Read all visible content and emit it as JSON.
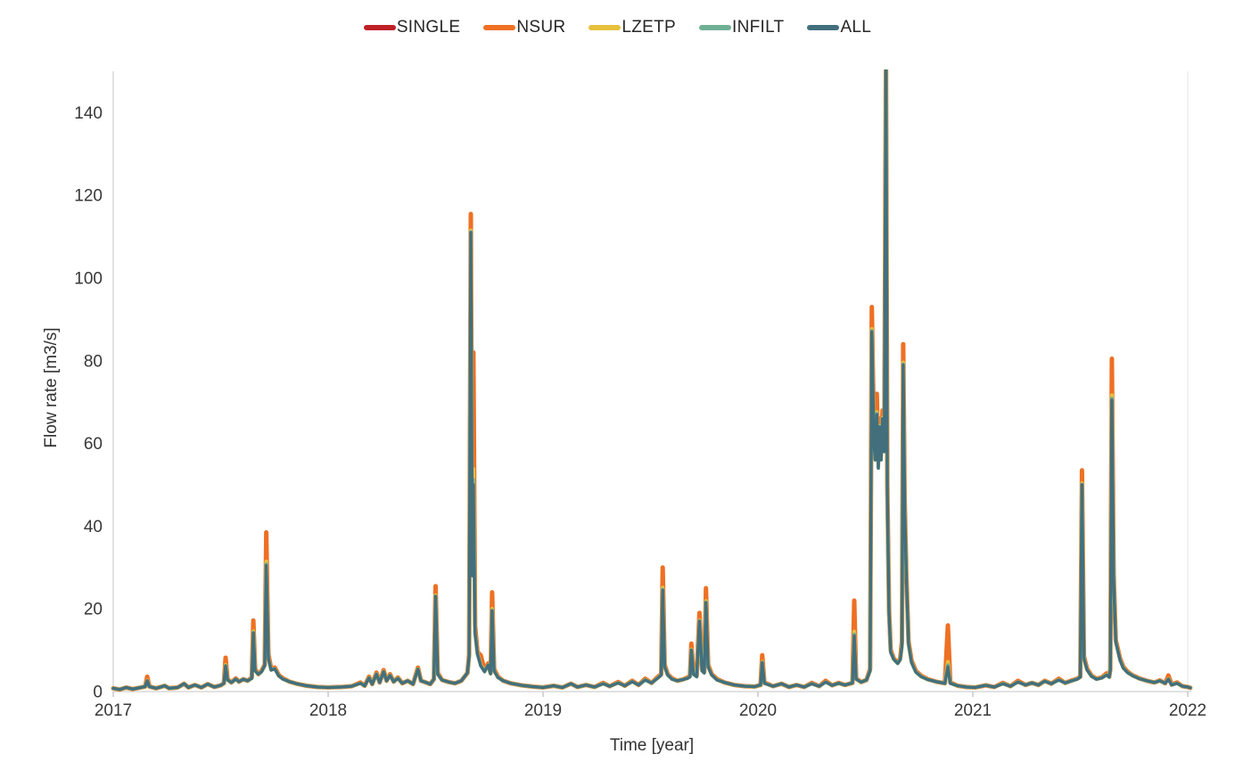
{
  "figure": {
    "background": "#ffffff"
  },
  "chart_data": {
    "type": "line",
    "title": "",
    "xlabel": "Time [year]",
    "ylabel": "Flow rate [m3/s]",
    "xlim": [
      2017,
      2022.02
    ],
    "ylim": [
      0,
      150
    ],
    "x_ticks": [
      "2017",
      "2018",
      "2019",
      "2020",
      "2021",
      "2022"
    ],
    "x_tick_values": [
      2017,
      2018,
      2019,
      2020,
      2021,
      2022
    ],
    "y_ticks": [
      0,
      20,
      40,
      60,
      80,
      100,
      120,
      140
    ],
    "grid": false,
    "legend_position": "top-center",
    "axis_color": "#d9d9d9",
    "text_color": "#383838",
    "note": "Daily flow-rate sensitivity comparison 2017-2022. SINGLE, LZETP and INFILT overlap ALL almost everywhere; only NSUR (orange) rises above ALL (teal) at flood peaks. The peak near 2020.6 exceeds the axis maximum and is clipped at 150.",
    "x": [
      2017.0,
      2017.03,
      2017.06,
      2017.09,
      2017.12,
      2017.148,
      2017.158,
      2017.168,
      2017.2,
      2017.24,
      2017.26,
      2017.3,
      2017.33,
      2017.35,
      2017.38,
      2017.41,
      2017.44,
      2017.47,
      2017.5,
      2017.515,
      2017.523,
      2017.532,
      2017.55,
      2017.57,
      2017.585,
      2017.605,
      2017.625,
      2017.645,
      2017.652,
      2017.66,
      2017.675,
      2017.69,
      2017.705,
      2017.712,
      2017.722,
      2017.735,
      2017.752,
      2017.77,
      2017.79,
      2017.82,
      2017.86,
      2017.9,
      2017.95,
      2018.0,
      2018.06,
      2018.11,
      2018.15,
      2018.17,
      2018.19,
      2018.205,
      2018.225,
      2018.24,
      2018.258,
      2018.272,
      2018.288,
      2018.305,
      2018.325,
      2018.345,
      2018.37,
      2018.395,
      2018.418,
      2018.432,
      2018.455,
      2018.475,
      2018.492,
      2018.5,
      2018.51,
      2018.53,
      2018.56,
      2018.59,
      2018.62,
      2018.648,
      2018.656,
      2018.664,
      2018.671,
      2018.676,
      2018.684,
      2018.695,
      2018.71,
      2018.728,
      2018.745,
      2018.756,
      2018.763,
      2018.772,
      2018.79,
      2018.815,
      2018.85,
      2018.9,
      2018.95,
      2019.0,
      2019.05,
      2019.09,
      2019.13,
      2019.16,
      2019.2,
      2019.24,
      2019.28,
      2019.31,
      2019.35,
      2019.38,
      2019.415,
      2019.445,
      2019.475,
      2019.505,
      2019.535,
      2019.55,
      2019.557,
      2019.566,
      2019.58,
      2019.6,
      2019.625,
      2019.65,
      2019.672,
      2019.684,
      2019.69,
      2019.7,
      2019.715,
      2019.728,
      2019.74,
      2019.75,
      2019.758,
      2019.768,
      2019.785,
      2019.81,
      2019.845,
      2019.89,
      2019.94,
      2019.985,
      2020.012,
      2020.02,
      2020.03,
      2020.07,
      2020.11,
      2020.145,
      2020.18,
      2020.215,
      2020.25,
      2020.285,
      2020.315,
      2020.345,
      2020.375,
      2020.405,
      2020.44,
      2020.448,
      2020.457,
      2020.48,
      2020.505,
      2020.522,
      2020.53,
      2020.54,
      2020.546,
      2020.553,
      2020.56,
      2020.566,
      2020.573,
      2020.58,
      2020.588,
      2020.596,
      2020.602,
      2020.61,
      2020.618,
      2020.632,
      2020.65,
      2020.662,
      2020.67,
      2020.676,
      2020.683,
      2020.691,
      2020.701,
      2020.715,
      2020.735,
      2020.76,
      2020.79,
      2020.83,
      2020.87,
      2020.884,
      2020.895,
      2020.93,
      2020.97,
      2021.01,
      2021.06,
      2021.1,
      2021.14,
      2021.175,
      2021.21,
      2021.245,
      2021.275,
      2021.305,
      2021.335,
      2021.365,
      2021.4,
      2021.43,
      2021.46,
      2021.485,
      2021.5,
      2021.508,
      2021.517,
      2021.532,
      2021.552,
      2021.575,
      2021.6,
      2021.622,
      2021.635,
      2021.64,
      2021.647,
      2021.655,
      2021.665,
      2021.685,
      2021.7,
      2021.72,
      2021.745,
      2021.775,
      2021.81,
      2021.845,
      2021.87,
      2021.895,
      2021.91,
      2021.925,
      2021.95,
      2021.975,
      2022.0,
      2022.012
    ],
    "series": [
      {
        "name": "SINGLE",
        "color": "#bf2026",
        "values_from": "ALL"
      },
      {
        "name": "NSUR",
        "color": "#ee7023",
        "values": [
          0.8,
          0.5,
          1.0,
          0.6,
          0.9,
          1.2,
          3.6,
          1.2,
          0.8,
          1.4,
          0.8,
          1.0,
          1.9,
          1.0,
          1.6,
          1.0,
          1.8,
          1.1,
          1.5,
          2.0,
          8.2,
          3.0,
          2.2,
          3.2,
          2.4,
          3.0,
          2.6,
          3.4,
          17.2,
          5.5,
          4.2,
          5.0,
          6.5,
          38.5,
          9.0,
          5.5,
          5.8,
          4.0,
          3.2,
          2.4,
          1.8,
          1.4,
          1.1,
          1.0,
          1.1,
          1.3,
          2.2,
          1.4,
          3.6,
          1.8,
          4.6,
          2.2,
          5.2,
          2.6,
          4.2,
          2.4,
          3.4,
          2.0,
          2.6,
          1.8,
          5.8,
          2.6,
          2.2,
          1.8,
          3.0,
          25.5,
          4.5,
          2.8,
          2.3,
          2.0,
          2.6,
          4.5,
          9.0,
          115.5,
          30.0,
          82.0,
          16.0,
          9.5,
          8.8,
          5.2,
          6.8,
          4.5,
          24.0,
          5.5,
          3.6,
          2.6,
          2.0,
          1.5,
          1.2,
          1.0,
          1.4,
          1.0,
          1.9,
          1.1,
          1.6,
          1.1,
          2.1,
          1.3,
          2.3,
          1.4,
          2.6,
          1.6,
          3.1,
          2.1,
          3.6,
          4.2,
          30.0,
          6.5,
          4.2,
          3.2,
          2.6,
          2.9,
          3.4,
          3.8,
          11.6,
          4.5,
          3.8,
          19.0,
          5.5,
          4.8,
          25.0,
          6.5,
          4.2,
          3.0,
          2.2,
          1.6,
          1.3,
          1.2,
          1.6,
          8.8,
          2.2,
          1.3,
          1.9,
          1.1,
          1.6,
          1.1,
          2.1,
          1.3,
          2.6,
          1.5,
          2.1,
          1.6,
          2.1,
          22.0,
          3.2,
          2.3,
          2.8,
          5.5,
          93.0,
          62.0,
          58.0,
          72.0,
          56.0,
          66.0,
          58.0,
          68.0,
          60.0,
          155.0,
          50.0,
          20.0,
          10.0,
          8.0,
          7.0,
          8.0,
          12.0,
          84.0,
          46.0,
          28.0,
          12.0,
          7.5,
          5.0,
          3.8,
          3.0,
          2.4,
          2.0,
          16.0,
          2.2,
          1.4,
          1.1,
          1.0,
          1.5,
          1.1,
          2.1,
          1.3,
          2.6,
          1.6,
          2.1,
          1.6,
          2.6,
          1.9,
          3.1,
          2.1,
          2.7,
          3.1,
          3.6,
          53.5,
          8.5,
          5.5,
          3.9,
          3.1,
          3.4,
          4.4,
          3.6,
          5.5,
          80.5,
          28.5,
          12.5,
          8.0,
          6.0,
          4.8,
          3.9,
          3.2,
          2.6,
          2.2,
          2.7,
          2.0,
          3.9,
          1.7,
          2.2,
          1.3,
          1.1,
          0.9
        ]
      },
      {
        "name": "LZETP",
        "color": "#e7c03e",
        "values_from": "blend:0.12"
      },
      {
        "name": "INFILT",
        "color": "#6fb093",
        "values_from": "blend:0.04"
      },
      {
        "name": "ALL",
        "color": "#436f7d",
        "values": [
          0.8,
          0.5,
          1.0,
          0.6,
          0.9,
          1.2,
          2.6,
          1.2,
          0.8,
          1.4,
          0.8,
          1.0,
          1.9,
          1.0,
          1.6,
          1.0,
          1.8,
          1.1,
          1.5,
          2.0,
          6.2,
          2.8,
          2.2,
          3.0,
          2.4,
          3.0,
          2.6,
          3.2,
          14.2,
          5.0,
          4.2,
          4.8,
          6.3,
          30.5,
          8.0,
          5.2,
          5.5,
          3.8,
          3.0,
          2.4,
          1.8,
          1.4,
          1.1,
          1.0,
          1.1,
          1.3,
          2.0,
          1.4,
          3.3,
          1.8,
          4.2,
          2.2,
          4.8,
          2.6,
          3.9,
          2.4,
          3.2,
          2.0,
          2.6,
          1.8,
          5.4,
          2.6,
          2.2,
          1.8,
          3.0,
          23.0,
          4.2,
          2.8,
          2.3,
          2.0,
          2.6,
          4.5,
          8.5,
          111.0,
          28.0,
          50.0,
          14.0,
          9.0,
          6.2,
          4.8,
          6.4,
          4.3,
          19.5,
          5.0,
          3.4,
          2.6,
          2.0,
          1.5,
          1.2,
          1.0,
          1.4,
          1.0,
          1.9,
          1.1,
          1.6,
          1.1,
          1.9,
          1.3,
          2.1,
          1.4,
          2.4,
          1.6,
          2.8,
          2.1,
          3.3,
          4.0,
          24.5,
          6.0,
          4.0,
          3.0,
          2.6,
          2.9,
          3.2,
          3.6,
          10.0,
          4.2,
          3.6,
          17.0,
          5.0,
          4.5,
          21.5,
          6.0,
          4.0,
          2.8,
          2.2,
          1.6,
          1.3,
          1.2,
          1.6,
          7.0,
          2.0,
          1.3,
          1.9,
          1.1,
          1.6,
          1.1,
          1.9,
          1.3,
          2.3,
          1.5,
          2.0,
          1.6,
          2.1,
          13.5,
          3.0,
          2.3,
          2.8,
          5.0,
          87.0,
          60.0,
          56.0,
          67.0,
          54.0,
          64.0,
          56.0,
          66.0,
          58.0,
          152.0,
          48.0,
          19.0,
          9.5,
          7.8,
          6.8,
          7.7,
          11.0,
          79.0,
          44.0,
          27.0,
          11.5,
          7.0,
          4.7,
          3.6,
          2.9,
          2.4,
          2.0,
          6.0,
          2.0,
          1.4,
          1.1,
          1.0,
          1.5,
          1.1,
          1.9,
          1.3,
          2.3,
          1.6,
          2.1,
          1.6,
          2.5,
          1.9,
          2.8,
          2.1,
          2.6,
          3.0,
          3.5,
          50.0,
          8.0,
          5.2,
          3.7,
          3.0,
          3.3,
          4.0,
          3.5,
          5.2,
          70.5,
          27.5,
          12.0,
          7.6,
          5.7,
          4.6,
          3.8,
          3.1,
          2.6,
          2.2,
          2.6,
          2.0,
          3.0,
          1.6,
          2.0,
          1.3,
          1.1,
          0.9
        ]
      }
    ]
  }
}
